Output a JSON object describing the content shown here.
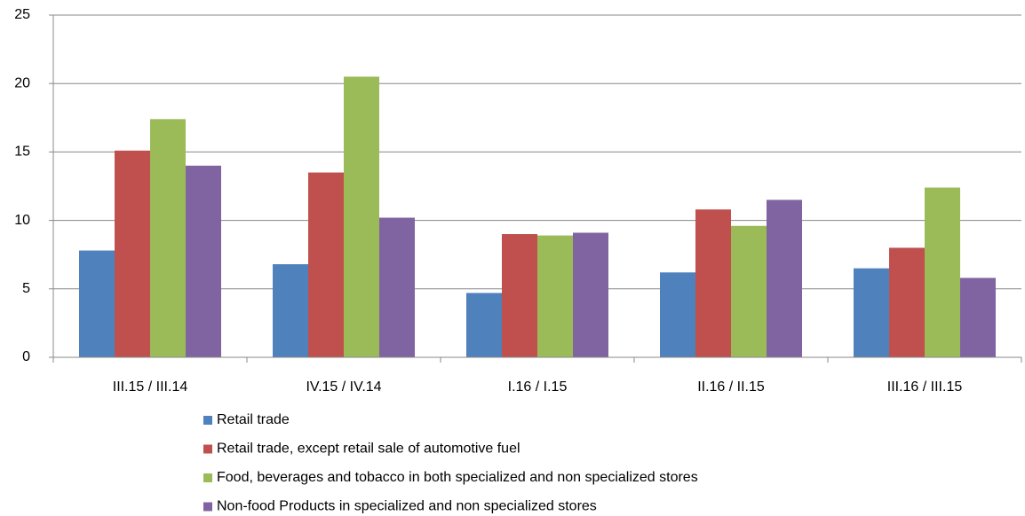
{
  "chart_data": {
    "type": "bar",
    "categories": [
      "III.15 / III.14",
      "IV.15 / IV.14",
      "I.16 / I.15",
      "II.16 / II.15",
      "III.16 / III.15"
    ],
    "series": [
      {
        "name": "Retail trade",
        "color": "#4f81bd",
        "values": [
          7.8,
          6.8,
          4.7,
          6.2,
          6.5
        ]
      },
      {
        "name": "Retail trade, except retail sale of automotive fuel",
        "color": "#c0504d",
        "values": [
          15.1,
          13.5,
          9.0,
          10.8,
          8.0
        ]
      },
      {
        "name": "Food, beverages and tobacco in both specialized and non specialized stores",
        "color": "#9bbb59",
        "values": [
          17.4,
          20.5,
          8.9,
          9.6,
          12.4
        ]
      },
      {
        "name": "Non-food Products in specialized and non specialized stores",
        "color": "#8064a2",
        "values": [
          14.0,
          10.2,
          9.1,
          11.5,
          5.8
        ]
      }
    ],
    "ylim": [
      0,
      25
    ],
    "yticks": [
      0,
      5,
      10,
      15,
      20,
      25
    ],
    "grid": true,
    "legend": "bottom"
  }
}
